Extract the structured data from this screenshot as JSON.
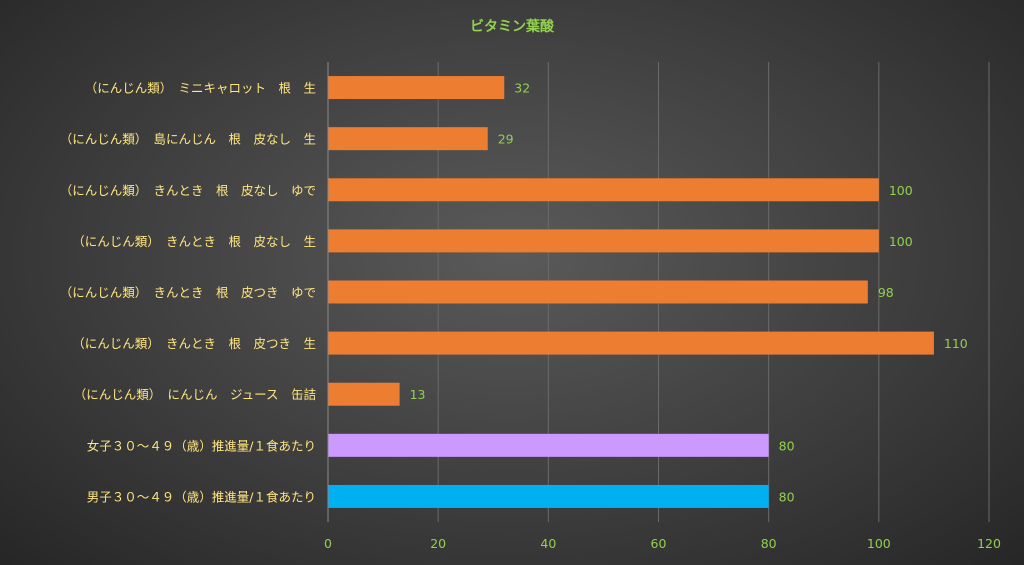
{
  "chart_data": {
    "type": "bar",
    "orientation": "horizontal",
    "title": "ビタミン葉酸",
    "xlabel": "",
    "ylabel": "",
    "xlim": [
      0,
      120
    ],
    "ticks": [
      0,
      20,
      40,
      60,
      80,
      100,
      120
    ],
    "grid": true,
    "categories": [
      "（にんじん類）　ミニキャロット　根　生",
      "（にんじん類）　島にんじん　根　皮なし　生",
      "（にんじん類）　きんとき　根　皮なし　ゆで",
      "（にんじん類）　きんとき　根　皮なし　生",
      "（にんじん類）　きんとき　根　皮つき　ゆで",
      "（にんじん類）　きんとき　根　皮つき　生",
      "（にんじん類）　にんじん　ジュース　缶詰",
      "女子３０～４９（歳）推進量/１食あたり",
      "男子３０～４９（歳）推進量/１食あたり"
    ],
    "values": [
      32,
      29,
      100,
      100,
      98,
      110,
      13,
      80,
      80
    ],
    "colors": [
      "#ed7d31",
      "#ed7d31",
      "#ed7d31",
      "#ed7d31",
      "#ed7d31",
      "#ed7d31",
      "#ed7d31",
      "#cc99ff",
      "#00b0f0"
    ]
  }
}
